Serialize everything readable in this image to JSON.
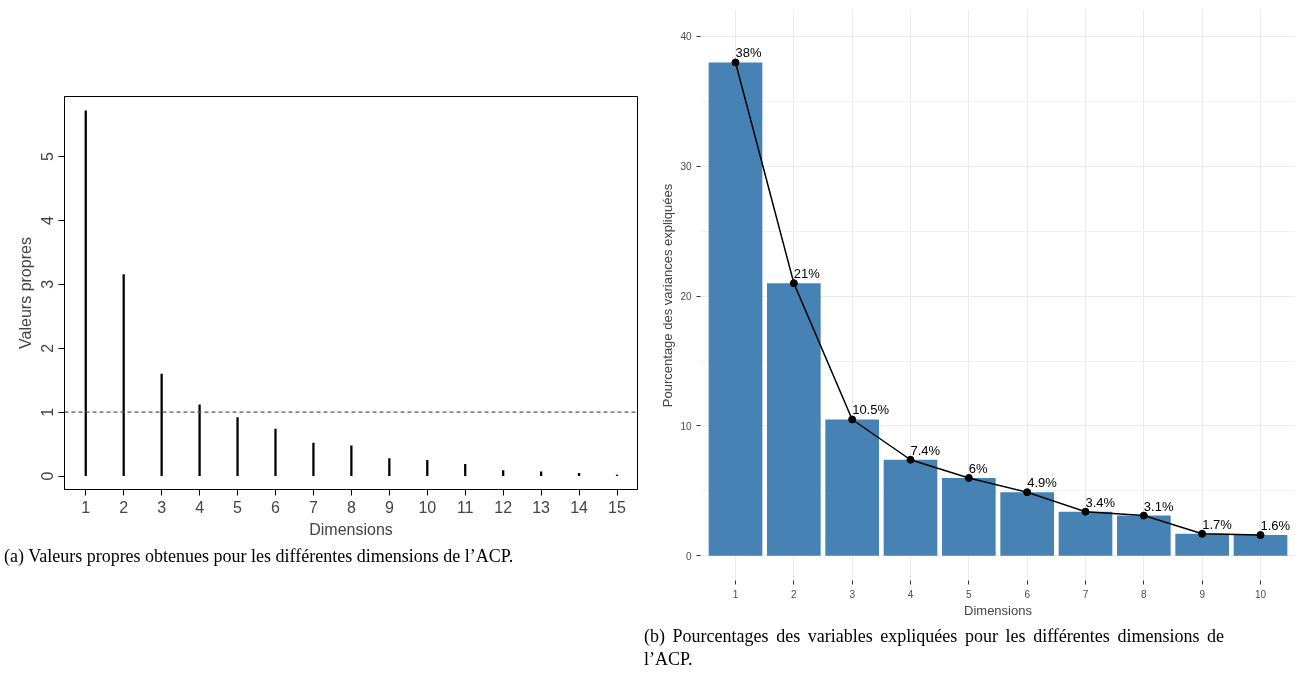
{
  "chart_data": [
    {
      "type": "bar",
      "x": [
        1,
        2,
        3,
        4,
        5,
        6,
        7,
        8,
        9,
        10,
        11,
        12,
        13,
        14,
        15
      ],
      "values": [
        5.72,
        3.16,
        1.6,
        1.12,
        0.92,
        0.74,
        0.52,
        0.48,
        0.28,
        0.25,
        0.19,
        0.09,
        0.07,
        0.05,
        0.02
      ],
      "color": "#000000",
      "xlabel": "Dimensions",
      "ylabel": "Valeurs propres",
      "xlim": [
        0.44,
        15.54
      ],
      "xticks": [
        1,
        2,
        3,
        4,
        5,
        6,
        7,
        8,
        9,
        10,
        11,
        12,
        13,
        14,
        15
      ],
      "ylim": [
        -0.21,
        5.94
      ],
      "yticks": [
        0,
        1,
        2,
        3,
        4,
        5
      ],
      "grid": false,
      "ref_lines": [
        {
          "axis": "y",
          "value": 1,
          "label": null,
          "color": "#555555",
          "line_style": "dashed"
        }
      ],
      "annotations": [
        "(a) Valeurs propres obtenues pour les différentes dimensions de l’ACP."
      ]
    },
    {
      "type": "bar",
      "categories": [
        "1",
        "2",
        "3",
        "4",
        "5",
        "6",
        "7",
        "8",
        "9",
        "10"
      ],
      "series": [
        {
          "type": "bar",
          "color": "#4682b4",
          "values": [
            38,
            21,
            10.5,
            7.4,
            6,
            4.9,
            3.4,
            3.1,
            1.7,
            1.6
          ],
          "value_labels": [
            "38%",
            "21%",
            "10.5%",
            "7.4%",
            "6%",
            "4.9%",
            "3.4%",
            "3.1%",
            "1.7%",
            "1.6%"
          ]
        },
        {
          "type": "line",
          "color": "#000000",
          "marker": "circle",
          "line_style": "solid",
          "values": [
            38,
            21,
            10.5,
            7.4,
            6,
            4.9,
            3.4,
            3.1,
            1.7,
            1.6
          ]
        }
      ],
      "xlabel": "Dimensions",
      "ylabel": "Pourcentage des variances expliquées",
      "ylim": [
        -1.9,
        42
      ],
      "yticks": [
        0,
        10,
        20,
        30,
        40
      ],
      "grid": true,
      "annotations": [
        "(b) Pourcentages des variables expliquées pour les différentes dimensions de l’ACP."
      ]
    }
  ]
}
